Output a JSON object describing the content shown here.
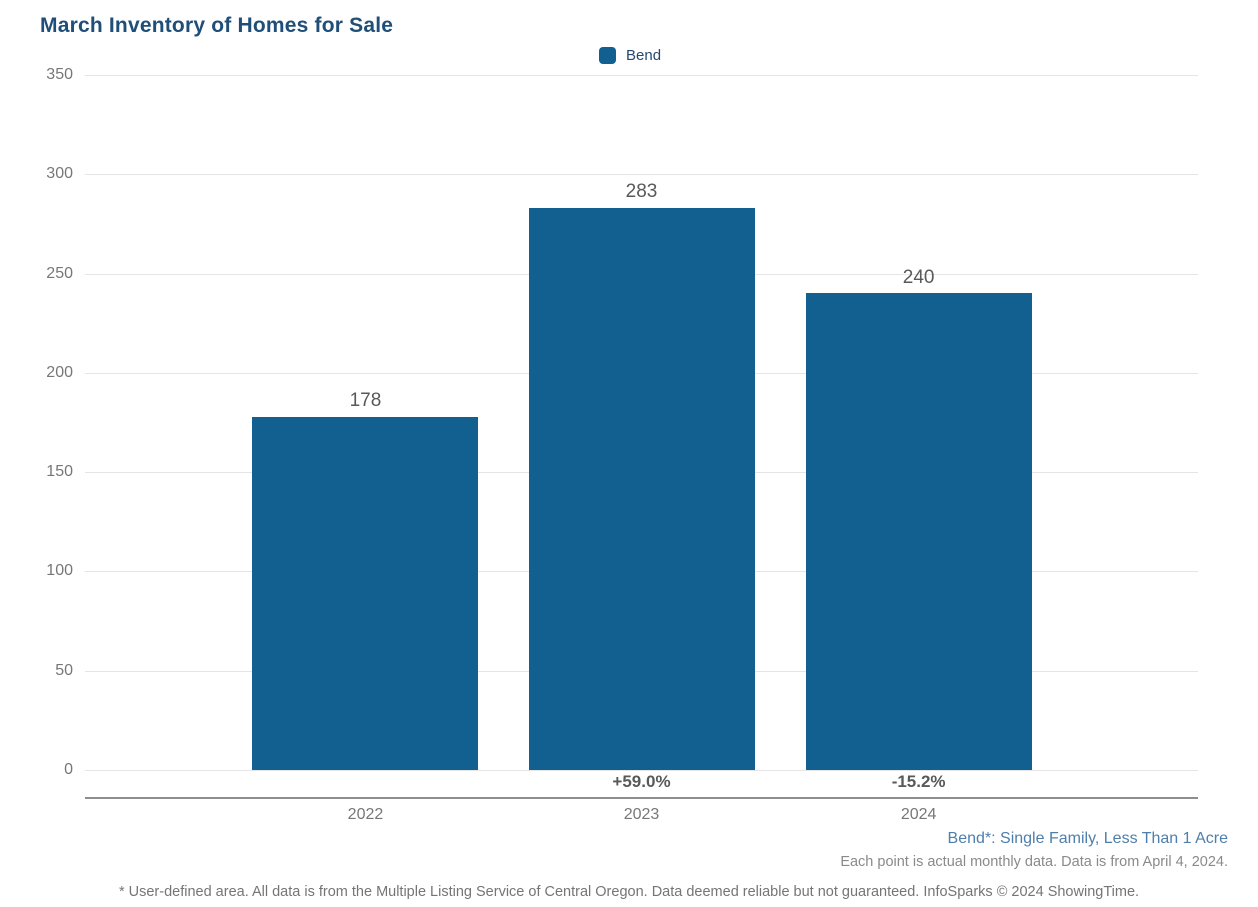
{
  "chart_data": {
    "type": "bar",
    "title": "March Inventory of Homes for Sale",
    "series_name": "Bend",
    "categories": [
      "2022",
      "2023",
      "2024"
    ],
    "values": [
      178,
      283,
      240
    ],
    "pct_change": [
      "",
      "+59.0%",
      "-15.2%"
    ],
    "yticks": [
      0,
      50,
      100,
      150,
      200,
      250,
      300,
      350
    ],
    "ylim": [
      0,
      350
    ],
    "grid": true,
    "legend_position": "top-center",
    "bar_color": "#11608F"
  },
  "annotations": {
    "series_note": "Bend*: Single Family, Less Than 1 Acre",
    "data_note": "Each point is actual monthly data. Data is from April 4, 2024.",
    "footer": "* User-defined area. All data is from the Multiple Listing Service of Central Oregon. Data deemed reliable but not guaranteed. InfoSparks © 2024 ShowingTime."
  },
  "colors": {
    "bar": "#11608F",
    "title_text": "#1F4E79",
    "series_note_text": "#4E7FAC",
    "axis_text": "#777777",
    "value_label_text": "#595959"
  }
}
